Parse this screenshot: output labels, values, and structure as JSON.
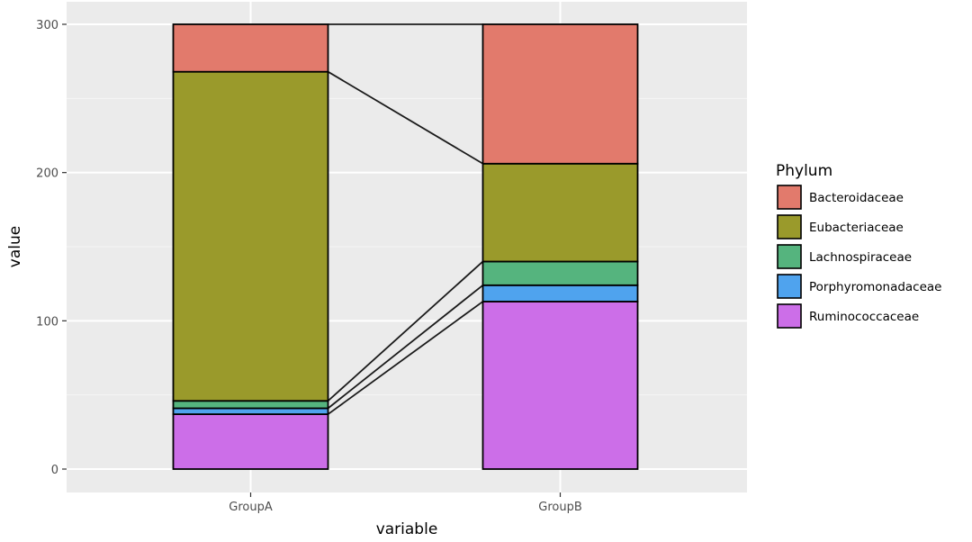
{
  "chart_data": {
    "type": "bar",
    "stacked": true,
    "categories": [
      "GroupA",
      "GroupB"
    ],
    "xlabel": "variable",
    "ylabel": "value",
    "ylim": [
      0,
      300
    ],
    "yticks": [
      0,
      100,
      200,
      300
    ],
    "grid": true,
    "legend_title": "Phylum",
    "legend_position": "right",
    "connectors_between_bars": true,
    "series": [
      {
        "name": "Ruminococcaceae",
        "color": "#cc6ee8",
        "values": [
          37,
          113
        ]
      },
      {
        "name": "Porphyromonadaceae",
        "color": "#4fa3ee",
        "values": [
          4,
          11
        ]
      },
      {
        "name": "Lachnospiraceae",
        "color": "#55b47e",
        "values": [
          5,
          16
        ]
      },
      {
        "name": "Eubacteriaceae",
        "color": "#9a9a2b",
        "values": [
          222,
          66
        ]
      },
      {
        "name": "Bacteroidaceae",
        "color": "#e27a6c",
        "values": [
          32,
          94
        ]
      }
    ],
    "legend_order": [
      "Bacteroidaceae",
      "Eubacteriaceae",
      "Lachnospiraceae",
      "Porphyromonadaceae",
      "Ruminococcaceae"
    ]
  }
}
